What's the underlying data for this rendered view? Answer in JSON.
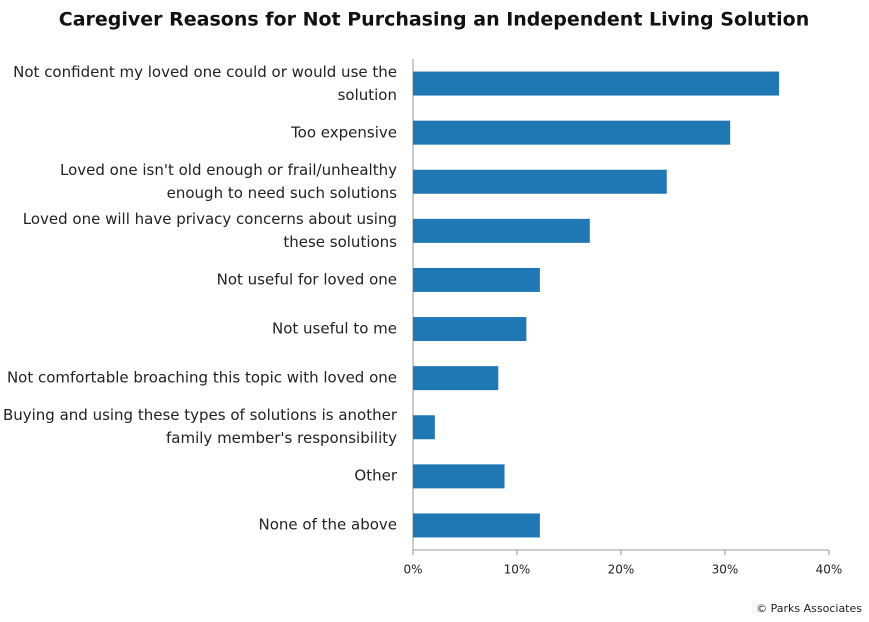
{
  "chart_data": {
    "type": "bar",
    "orientation": "horizontal",
    "title": "Caregiver Reasons for Not Purchasing an Independent Living Solution",
    "categories": [
      "Not confident my loved one could or would use the solution",
      "Too expensive",
      "Loved one isn't old enough or frail/unhealthy enough to need such solutions",
      "Loved one will have privacy concerns about using these solutions",
      "Not useful for loved one",
      "Not useful to me",
      "Not comfortable broaching this topic with loved one",
      "Buying and using these types of solutions is another family member's responsibility",
      "Other",
      "None of the above"
    ],
    "values": [
      35.2,
      30.5,
      24.4,
      17.0,
      12.2,
      10.9,
      8.2,
      2.1,
      8.8,
      12.2
    ],
    "color": "#1f77b4",
    "xlim": [
      0,
      40
    ],
    "xticks": [
      {
        "value": 0,
        "label": "0%"
      },
      {
        "value": 10,
        "label": "10%"
      },
      {
        "value": 20,
        "label": "20%"
      },
      {
        "value": 30,
        "label": "30%"
      },
      {
        "value": 40,
        "label": "40%"
      }
    ],
    "grid": false,
    "source": "© Parks Associates"
  }
}
